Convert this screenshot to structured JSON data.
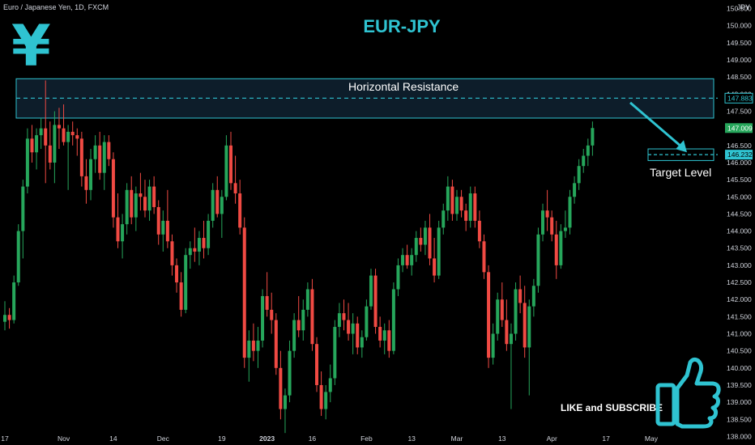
{
  "header": {
    "symbol_desc": "Euro / Japanese Yen, 1D, FXCM",
    "title": "EUR-JPY",
    "currency": "JPY"
  },
  "annotations": {
    "resistance_label": "Horizontal Resistance",
    "target_label": "Target Level",
    "cta": "LIKE and SUBSCRIBE"
  },
  "colors": {
    "background": "#000000",
    "accent": "#2fc3d1",
    "up": "#26a65b",
    "down": "#f04a43",
    "zone_fill": "#0d1d2a"
  },
  "icons": [
    "yen-sign-icon",
    "thumbs-up-icon",
    "arrow-icon"
  ],
  "chart_data": {
    "type": "candlestick",
    "title": "EUR-JPY",
    "yaxis": {
      "unit": "JPY",
      "range": [
        137.75,
        150.75
      ],
      "ticks": [
        138.0,
        138.5,
        139.0,
        139.5,
        140.0,
        140.5,
        141.0,
        141.5,
        142.0,
        142.5,
        143.0,
        143.5,
        144.0,
        144.5,
        145.0,
        145.5,
        146.0,
        146.5,
        147.0,
        147.5,
        148.0,
        148.5,
        149.0,
        149.5,
        150.0,
        150.5
      ],
      "tick_labels": [
        "138.000",
        "138.500",
        "139.000",
        "139.500",
        "140.000",
        "140.500",
        "141.000",
        "141.500",
        "142.000",
        "142.500",
        "143.000",
        "143.500",
        "144.000",
        "144.500",
        "145.000",
        "145.500",
        "146.000",
        "146.500",
        "147.000",
        "147.500",
        "148.000",
        "148.500",
        "149.000",
        "149.500",
        "150.000",
        "150.500"
      ]
    },
    "xaxis": {
      "labels": [
        "17",
        "Nov",
        "14",
        "Dec",
        "19",
        "2023",
        "16",
        "Feb",
        "13",
        "Mar",
        "13",
        "Apr",
        "17",
        "May"
      ],
      "label_bar_index": [
        0,
        13,
        24,
        35,
        48,
        58,
        68,
        80,
        90,
        100,
        110,
        121,
        133,
        143
      ]
    },
    "price_labels": [
      {
        "text": "147.883",
        "value": 147.883,
        "style": "accent-outline"
      },
      {
        "text": "147.009",
        "value": 147.009,
        "style": "up-fill"
      },
      {
        "text": "146.232",
        "value": 146.232,
        "style": "accent-fill"
      }
    ],
    "resistance_zone": {
      "low": 147.3,
      "high": 148.45,
      "level": 147.883
    },
    "target_level": 146.232,
    "candles_ohlc": [
      [
        141.35,
        141.95,
        141.1,
        141.55
      ],
      [
        141.55,
        141.75,
        141.15,
        141.4
      ],
      [
        141.4,
        142.7,
        141.3,
        142.5
      ],
      [
        142.5,
        144.2,
        142.4,
        144.0
      ],
      [
        144.0,
        145.5,
        143.2,
        145.3
      ],
      [
        145.3,
        147.0,
        145.1,
        146.7
      ],
      [
        146.7,
        147.1,
        146.0,
        146.3
      ],
      [
        146.3,
        147.0,
        145.8,
        146.8
      ],
      [
        146.8,
        147.3,
        146.4,
        147.0
      ],
      [
        147.0,
        148.4,
        145.4,
        146.5
      ],
      [
        146.5,
        147.2,
        145.8,
        146.0
      ],
      [
        146.0,
        147.5,
        145.4,
        147.1
      ],
      [
        147.1,
        147.6,
        146.4,
        147.0
      ],
      [
        147.0,
        147.7,
        146.5,
        146.6
      ],
      [
        146.6,
        147.1,
        145.2,
        146.9
      ],
      [
        146.9,
        147.2,
        146.5,
        146.8
      ],
      [
        146.8,
        147.0,
        146.2,
        146.7
      ],
      [
        146.7,
        146.9,
        145.3,
        145.6
      ],
      [
        145.6,
        146.1,
        144.8,
        145.2
      ],
      [
        145.2,
        146.4,
        144.9,
        146.1
      ],
      [
        146.1,
        146.8,
        145.7,
        146.5
      ],
      [
        146.5,
        146.9,
        145.5,
        145.7
      ],
      [
        145.7,
        146.8,
        145.2,
        146.6
      ],
      [
        146.6,
        146.8,
        145.9,
        146.1
      ],
      [
        146.1,
        146.3,
        144.1,
        144.4
      ],
      [
        144.4,
        145.1,
        143.5,
        143.7
      ],
      [
        143.7,
        144.5,
        143.2,
        144.2
      ],
      [
        144.2,
        145.4,
        143.9,
        145.2
      ],
      [
        145.2,
        145.6,
        144.2,
        144.4
      ],
      [
        144.4,
        145.3,
        144.0,
        145.1
      ],
      [
        145.1,
        145.7,
        144.6,
        145.0
      ],
      [
        145.0,
        145.5,
        144.4,
        144.6
      ],
      [
        144.6,
        145.5,
        144.3,
        145.3
      ],
      [
        145.3,
        145.6,
        144.5,
        144.7
      ],
      [
        144.7,
        144.9,
        143.6,
        143.9
      ],
      [
        143.9,
        144.6,
        143.4,
        144.3
      ],
      [
        144.3,
        145.2,
        143.5,
        143.7
      ],
      [
        143.7,
        143.9,
        142.7,
        143.0
      ],
      [
        143.0,
        143.2,
        142.2,
        142.5
      ],
      [
        142.5,
        142.8,
        141.5,
        141.7
      ],
      [
        141.7,
        143.5,
        141.6,
        143.3
      ],
      [
        143.3,
        143.7,
        142.9,
        143.5
      ],
      [
        143.5,
        144.1,
        143.1,
        143.4
      ],
      [
        143.4,
        144.0,
        143.0,
        143.8
      ],
      [
        143.8,
        144.3,
        143.2,
        143.5
      ],
      [
        143.5,
        144.5,
        143.3,
        144.3
      ],
      [
        144.3,
        145.4,
        144.1,
        145.2
      ],
      [
        145.2,
        145.6,
        144.4,
        144.5
      ],
      [
        144.5,
        145.2,
        143.8,
        145.0
      ],
      [
        145.0,
        146.8,
        144.9,
        146.5
      ],
      [
        146.5,
        146.9,
        145.2,
        145.4
      ],
      [
        145.4,
        146.2,
        144.8,
        145.1
      ],
      [
        145.1,
        145.5,
        143.9,
        144.1
      ],
      [
        144.1,
        144.4,
        140.0,
        140.3
      ],
      [
        140.3,
        141.1,
        139.6,
        140.8
      ],
      [
        140.8,
        141.3,
        140.2,
        140.5
      ],
      [
        140.5,
        141.2,
        140.0,
        140.8
      ],
      [
        140.8,
        142.3,
        140.6,
        142.1
      ],
      [
        142.1,
        142.8,
        141.5,
        141.7
      ],
      [
        141.7,
        142.2,
        141.0,
        141.4
      ],
      [
        141.4,
        141.6,
        139.8,
        140.0
      ],
      [
        140.0,
        140.5,
        138.5,
        138.8
      ],
      [
        138.8,
        139.4,
        138.1,
        139.2
      ],
      [
        139.2,
        140.8,
        139.0,
        140.5
      ],
      [
        140.5,
        141.6,
        140.3,
        141.4
      ],
      [
        141.4,
        142.1,
        140.9,
        141.1
      ],
      [
        141.1,
        142.0,
        140.8,
        141.7
      ],
      [
        141.7,
        142.5,
        141.5,
        142.3
      ],
      [
        142.3,
        142.6,
        140.5,
        140.7
      ],
      [
        140.7,
        140.9,
        139.3,
        139.5
      ],
      [
        139.5,
        139.9,
        138.6,
        138.8
      ],
      [
        138.8,
        139.5,
        138.5,
        139.3
      ],
      [
        139.3,
        140.1,
        139.0,
        139.7
      ],
      [
        139.7,
        141.4,
        139.5,
        141.2
      ],
      [
        141.2,
        141.9,
        140.9,
        141.6
      ],
      [
        141.6,
        142.0,
        141.1,
        141.4
      ],
      [
        141.4,
        141.9,
        140.8,
        141.0
      ],
      [
        141.0,
        141.6,
        140.4,
        141.3
      ],
      [
        141.3,
        141.5,
        140.4,
        140.6
      ],
      [
        140.6,
        141.1,
        140.3,
        140.9
      ],
      [
        140.9,
        142.0,
        140.8,
        141.8
      ],
      [
        141.8,
        142.9,
        141.7,
        142.7
      ],
      [
        142.7,
        142.9,
        141.0,
        141.2
      ],
      [
        141.2,
        141.5,
        140.6,
        140.8
      ],
      [
        140.8,
        141.3,
        140.4,
        141.1
      ],
      [
        141.1,
        141.4,
        140.3,
        140.5
      ],
      [
        140.5,
        142.5,
        140.4,
        142.3
      ],
      [
        142.3,
        143.2,
        142.1,
        143.0
      ],
      [
        143.0,
        143.5,
        142.8,
        143.3
      ],
      [
        143.3,
        143.6,
        142.9,
        143.0
      ],
      [
        143.0,
        143.5,
        142.7,
        143.3
      ],
      [
        143.3,
        144.0,
        143.1,
        143.8
      ],
      [
        143.8,
        144.1,
        143.4,
        143.6
      ],
      [
        143.6,
        144.3,
        143.3,
        144.1
      ],
      [
        144.1,
        144.5,
        143.0,
        143.2
      ],
      [
        143.2,
        143.8,
        142.5,
        142.7
      ],
      [
        142.7,
        144.3,
        142.6,
        144.1
      ],
      [
        144.1,
        144.8,
        143.9,
        144.6
      ],
      [
        144.6,
        145.6,
        144.3,
        145.3
      ],
      [
        145.3,
        145.5,
        144.3,
        144.5
      ],
      [
        144.5,
        145.2,
        144.3,
        145.0
      ],
      [
        145.0,
        145.2,
        144.4,
        144.6
      ],
      [
        144.6,
        144.8,
        144.0,
        144.3
      ],
      [
        144.3,
        145.3,
        144.1,
        145.1
      ],
      [
        145.1,
        145.3,
        144.1,
        144.3
      ],
      [
        144.3,
        144.6,
        143.5,
        143.7
      ],
      [
        143.7,
        143.9,
        142.6,
        142.8
      ],
      [
        142.8,
        143.0,
        140.0,
        140.3
      ],
      [
        140.3,
        141.3,
        140.1,
        141.0
      ],
      [
        141.0,
        142.2,
        140.8,
        142.0
      ],
      [
        142.0,
        142.5,
        141.2,
        141.4
      ],
      [
        141.4,
        142.0,
        140.5,
        140.7
      ],
      [
        140.7,
        141.3,
        138.8,
        141.0
      ],
      [
        141.0,
        142.5,
        140.8,
        142.3
      ],
      [
        142.3,
        142.7,
        141.6,
        141.9
      ],
      [
        141.9,
        142.4,
        140.3,
        140.6
      ],
      [
        140.6,
        142.0,
        139.2,
        141.8
      ],
      [
        141.8,
        142.6,
        141.5,
        142.4
      ],
      [
        142.4,
        144.1,
        142.2,
        143.9
      ],
      [
        143.9,
        144.8,
        143.7,
        144.6
      ],
      [
        144.6,
        145.2,
        144.0,
        144.4
      ],
      [
        144.4,
        144.6,
        143.7,
        143.9
      ],
      [
        143.9,
        144.3,
        142.6,
        143.0
      ],
      [
        143.0,
        144.2,
        142.9,
        144.0
      ],
      [
        144.0,
        144.6,
        143.8,
        144.1
      ],
      [
        144.1,
        145.2,
        143.9,
        145.0
      ],
      [
        145.0,
        145.6,
        144.8,
        145.4
      ],
      [
        145.4,
        146.1,
        145.2,
        145.9
      ],
      [
        145.9,
        146.4,
        145.7,
        146.2
      ],
      [
        146.2,
        146.7,
        145.9,
        146.5
      ],
      [
        146.5,
        147.2,
        146.2,
        147.01
      ]
    ]
  }
}
